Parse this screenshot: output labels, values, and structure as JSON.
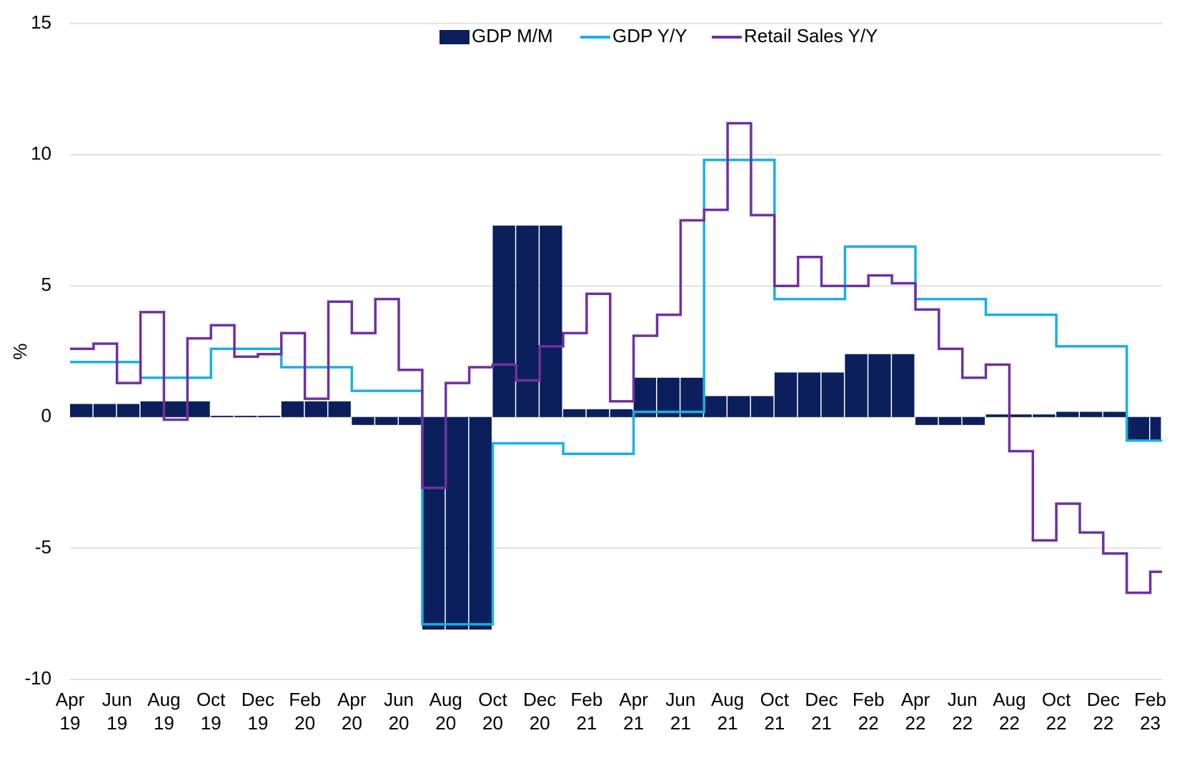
{
  "chart_data": {
    "type": "bar",
    "title": "",
    "xlabel": "",
    "ylabel": "%",
    "ylim": [
      -10,
      15
    ],
    "yticks": [
      15,
      10,
      5,
      0,
      -5,
      -10
    ],
    "grid": true,
    "legend_position": "top",
    "months": [
      "Apr 19",
      "May 19",
      "Jun 19",
      "Jul 19",
      "Aug 19",
      "Sep 19",
      "Oct 19",
      "Nov 19",
      "Dec 19",
      "Jan 20",
      "Feb 20",
      "Mar 20",
      "Apr 20",
      "May 20",
      "Jun 20",
      "Jul 20",
      "Aug 20",
      "Sep 20",
      "Oct 20",
      "Nov 20",
      "Dec 20",
      "Jan 21",
      "Feb 21",
      "Mar 21",
      "Apr 21",
      "May 21",
      "Jun 21",
      "Jul 21",
      "Aug 21",
      "Sep 21",
      "Oct 21",
      "Nov 21",
      "Dec 21",
      "Jan 22",
      "Feb 22",
      "Mar 22",
      "Apr 22",
      "May 22",
      "Jun 22",
      "Jul 22",
      "Aug 22",
      "Sep 22",
      "Oct 22",
      "Nov 22",
      "Dec 22",
      "Jan 23",
      "Feb 23"
    ],
    "x_tick_labels": [
      {
        "month": "Apr",
        "year": "19"
      },
      {
        "month": "Jun",
        "year": "19"
      },
      {
        "month": "Aug",
        "year": "19"
      },
      {
        "month": "Oct",
        "year": "19"
      },
      {
        "month": "Dec",
        "year": "19"
      },
      {
        "month": "Feb",
        "year": "20"
      },
      {
        "month": "Apr",
        "year": "20"
      },
      {
        "month": "Jun",
        "year": "20"
      },
      {
        "month": "Aug",
        "year": "20"
      },
      {
        "month": "Oct",
        "year": "20"
      },
      {
        "month": "Dec",
        "year": "20"
      },
      {
        "month": "Feb",
        "year": "21"
      },
      {
        "month": "Apr",
        "year": "21"
      },
      {
        "month": "Jun",
        "year": "21"
      },
      {
        "month": "Aug",
        "year": "21"
      },
      {
        "month": "Oct",
        "year": "21"
      },
      {
        "month": "Dec",
        "year": "21"
      },
      {
        "month": "Feb",
        "year": "22"
      },
      {
        "month": "Apr",
        "year": "22"
      },
      {
        "month": "Jun",
        "year": "22"
      },
      {
        "month": "Aug",
        "year": "22"
      },
      {
        "month": "Oct",
        "year": "22"
      },
      {
        "month": "Dec",
        "year": "22"
      },
      {
        "month": "Feb",
        "year": "23"
      }
    ],
    "series": [
      {
        "name": "GDP M/M",
        "kind": "bar",
        "color": "#0a1f5c",
        "values": [
          0.5,
          0.5,
          0.5,
          0.6,
          0.6,
          0.6,
          0.05,
          0.05,
          0.05,
          0.6,
          0.6,
          0.6,
          -0.3,
          -0.3,
          -0.3,
          -8.1,
          -8.1,
          -8.1,
          7.3,
          7.3,
          7.3,
          0.3,
          0.3,
          0.3,
          1.5,
          1.5,
          1.5,
          0.8,
          0.8,
          0.8,
          1.7,
          1.7,
          1.7,
          2.4,
          2.4,
          2.4,
          -0.3,
          -0.3,
          -0.3,
          0.1,
          0.1,
          0.1,
          0.2,
          0.2,
          0.2,
          -0.9,
          -0.9
        ]
      },
      {
        "name": "GDP Y/Y",
        "kind": "line",
        "color": "#1aafe6",
        "values": [
          2.1,
          2.1,
          2.1,
          1.5,
          1.5,
          1.5,
          2.6,
          2.6,
          2.6,
          1.9,
          1.9,
          1.9,
          1.0,
          1.0,
          1.0,
          -7.9,
          -7.9,
          -7.9,
          -1.0,
          -1.0,
          -1.0,
          -1.4,
          -1.4,
          -1.4,
          0.2,
          0.2,
          0.2,
          9.8,
          9.8,
          9.8,
          4.5,
          4.5,
          4.5,
          6.5,
          6.5,
          6.5,
          4.5,
          4.5,
          4.5,
          3.9,
          3.9,
          3.9,
          2.7,
          2.7,
          2.7,
          -0.9,
          -0.9
        ]
      },
      {
        "name": "Retail Sales Y/Y",
        "kind": "line",
        "color": "#7030a0",
        "values": [
          2.6,
          2.8,
          1.3,
          4.0,
          -0.1,
          3.0,
          3.5,
          2.3,
          2.4,
          3.2,
          0.7,
          4.4,
          3.2,
          4.5,
          1.8,
          -2.7,
          1.3,
          1.9,
          2.0,
          1.4,
          2.7,
          3.2,
          4.7,
          0.6,
          3.1,
          3.9,
          7.5,
          7.9,
          11.2,
          7.7,
          5.0,
          6.1,
          5.0,
          5.0,
          5.4,
          5.1,
          4.1,
          2.6,
          1.5,
          2.0,
          -1.3,
          -4.7,
          -3.3,
          -4.4,
          -5.2,
          -6.7,
          -5.9
        ]
      }
    ]
  }
}
